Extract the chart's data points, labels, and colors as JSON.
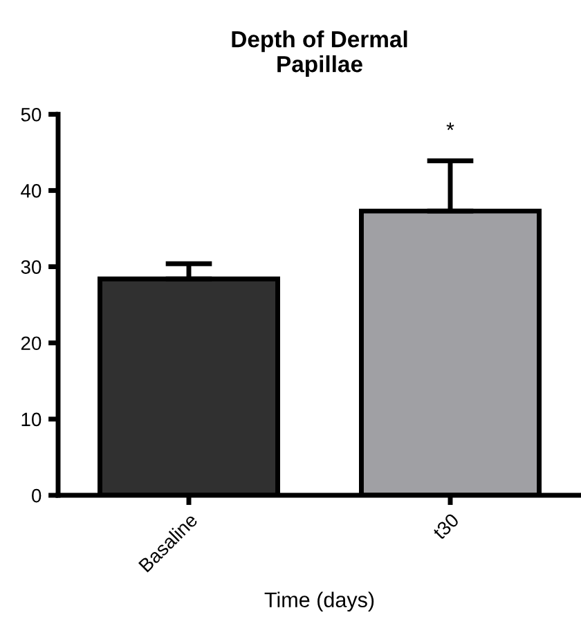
{
  "chart_data": {
    "type": "bar",
    "title": "Depth of Dermal\nPapillae",
    "xlabel": "Time (days)",
    "categories": [
      "Basaline",
      "t30"
    ],
    "values": [
      28.4,
      37.3
    ],
    "colors": [
      "#303030",
      "#a0a0a4"
    ],
    "errors": [
      [
        28.4,
        30.4
      ],
      [
        37.3,
        43.9
      ]
    ],
    "ylim": [
      0,
      50
    ],
    "yticks": [
      0,
      10,
      20,
      30,
      40,
      50
    ],
    "annotations": [
      "*"
    ],
    "grid": false,
    "legend": false
  }
}
